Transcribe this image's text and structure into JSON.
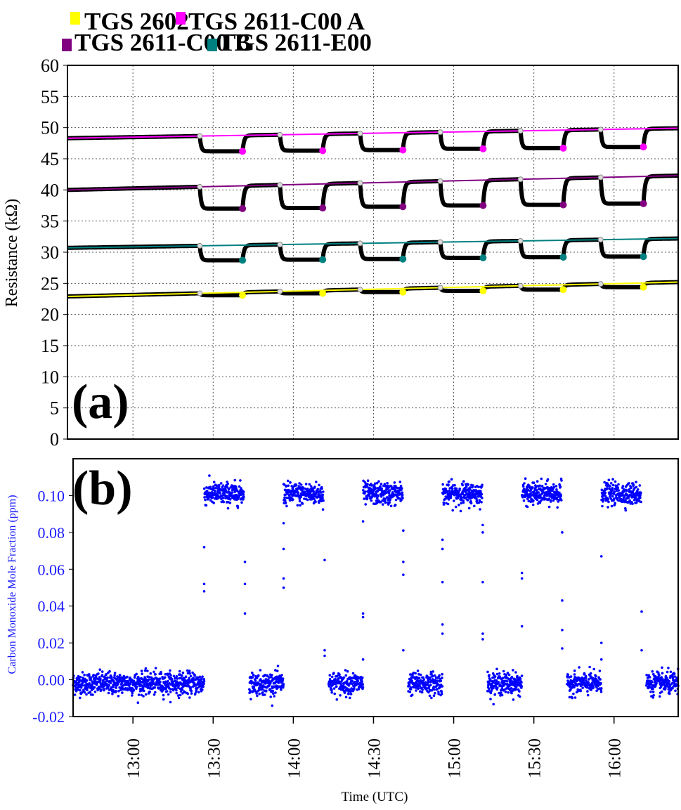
{
  "chart_data": [
    {
      "type": "line",
      "panel_label": "(a)",
      "title": "",
      "xlabel": "",
      "ylabel": "Resistance (kΩ)",
      "ylim": [
        0,
        60
      ],
      "yticks": [
        "0",
        "5",
        "10",
        "15",
        "20",
        "25",
        "30",
        "35",
        "40",
        "45",
        "50",
        "55",
        "60"
      ],
      "xlim_minutes_after_1200": [
        35.5,
        264
      ],
      "grid": true,
      "legend_position": "top-center",
      "legend": [
        "TGS 2602",
        "TGS 2611-C00 A",
        "TGS 2611-C00 B",
        "TGS 2611-E00"
      ],
      "pulses_minutes_after_1200": [
        [
          85,
          101
        ],
        [
          115,
          131
        ],
        [
          145,
          161
        ],
        [
          175,
          191
        ],
        [
          205,
          221
        ],
        [
          235,
          251
        ]
      ],
      "series": [
        {
          "name": "TGS 2602",
          "color": "#ffff00",
          "baseline_start": 22.9,
          "baseline_end": 25.2,
          "dip_values": [
            23.1,
            23.4,
            23.6,
            23.8,
            24.0,
            24.4
          ]
        },
        {
          "name": "TGS 2611-C00 A",
          "color": "#ff00ff",
          "baseline_start": 48.3,
          "baseline_end": 49.9,
          "dip_values": [
            46.2,
            46.3,
            46.4,
            46.6,
            46.7,
            46.9
          ]
        },
        {
          "name": "TGS 2611-C00 B",
          "color": "#800080",
          "baseline_start": 40.0,
          "baseline_end": 42.3,
          "dip_values": [
            37.0,
            37.1,
            37.3,
            37.5,
            37.6,
            37.8
          ]
        },
        {
          "name": "TGS 2611-E00",
          "color": "#008080",
          "baseline_start": 30.7,
          "baseline_end": 32.2,
          "dip_values": [
            28.7,
            28.8,
            28.9,
            29.1,
            29.2,
            29.3
          ]
        }
      ]
    },
    {
      "type": "scatter",
      "panel_label": "(b)",
      "xlabel": "Time (UTC)",
      "ylabel": "Carbon Monoxide Mole Fraction (ppm)",
      "ylim": [
        -0.02,
        0.12
      ],
      "yticks": [
        "-0.02",
        "0.00",
        "0.02",
        "0.04",
        "0.06",
        "0.08",
        "0.10"
      ],
      "xticks": [
        "13:00",
        "13:30",
        "14:00",
        "14:30",
        "15:00",
        "15:30",
        "16:00"
      ],
      "xtick_minutes_after_1200": [
        60,
        90,
        120,
        150,
        180,
        210,
        240
      ],
      "color": "#0000ff",
      "high_level": 0.101,
      "low_level": -0.002,
      "noise_sd": 0.003,
      "high_periods_minutes_after_1200": [
        [
          85,
          100
        ],
        [
          115,
          130
        ],
        [
          145,
          160
        ],
        [
          175,
          190
        ],
        [
          205,
          220
        ],
        [
          235,
          250
        ]
      ],
      "gap_periods_minutes_after_1200": [
        [
          100,
          102
        ],
        [
          130,
          132
        ],
        [
          160,
          162
        ],
        [
          190,
          192
        ],
        [
          220,
          222
        ],
        [
          250,
          252
        ]
      ],
      "transition_points": [
        [
          85,
          0.072
        ],
        [
          85,
          0.052
        ],
        [
          85,
          0.048
        ],
        [
          100.4,
          0.064
        ],
        [
          100.4,
          0.052
        ],
        [
          100.4,
          0.036
        ],
        [
          115,
          0.071
        ],
        [
          115,
          0.055
        ],
        [
          115,
          0.05
        ],
        [
          115,
          0.085
        ],
        [
          130.5,
          0.065
        ],
        [
          130.5,
          0.016
        ],
        [
          130.5,
          0.013
        ],
        [
          145,
          0.086
        ],
        [
          145,
          0.036
        ],
        [
          145,
          0.034
        ],
        [
          145,
          0.011
        ],
        [
          160.2,
          0.081
        ],
        [
          160.2,
          0.064
        ],
        [
          160.2,
          0.057
        ],
        [
          160.2,
          0.016
        ],
        [
          175,
          0.076
        ],
        [
          175,
          0.071
        ],
        [
          175,
          0.053
        ],
        [
          175,
          0.03
        ],
        [
          175,
          0.025
        ],
        [
          190.2,
          0.084
        ],
        [
          190.2,
          0.08
        ],
        [
          190.2,
          0.053
        ],
        [
          190.2,
          0.025
        ],
        [
          190.2,
          0.022
        ],
        [
          205,
          0.058
        ],
        [
          205,
          0.055
        ],
        [
          205,
          0.029
        ],
        [
          220.2,
          0.08
        ],
        [
          220.2,
          0.043
        ],
        [
          220.2,
          0.027
        ],
        [
          220.2,
          0.017
        ],
        [
          235,
          0.067
        ],
        [
          235,
          0.02
        ],
        [
          235,
          0.011
        ],
        [
          250.2,
          0.037
        ],
        [
          250.2,
          0.016
        ]
      ]
    }
  ]
}
